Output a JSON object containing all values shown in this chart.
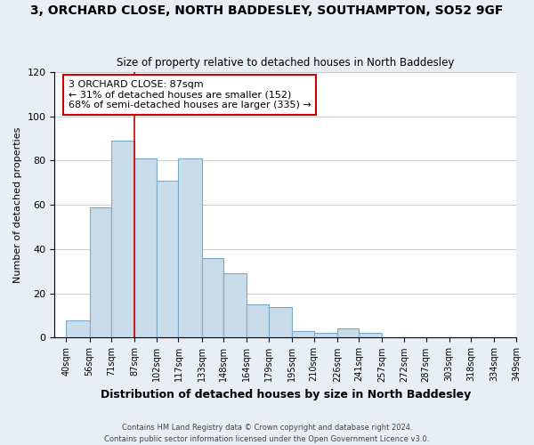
{
  "title": "3, ORCHARD CLOSE, NORTH BADDESLEY, SOUTHAMPTON, SO52 9GF",
  "subtitle": "Size of property relative to detached houses in North Baddesley",
  "xlabel": "Distribution of detached houses by size in North Baddesley",
  "ylabel": "Number of detached properties",
  "bar_edges": [
    40,
    56,
    71,
    87,
    102,
    117,
    133,
    148,
    164,
    179,
    195,
    210,
    226,
    241,
    257,
    272,
    287,
    303,
    318,
    334,
    349
  ],
  "bar_heights": [
    8,
    59,
    89,
    81,
    71,
    81,
    36,
    29,
    15,
    14,
    3,
    2,
    4,
    2,
    0,
    0,
    0,
    0,
    0,
    0
  ],
  "bar_color": "#c9dcea",
  "bar_edge_color": "#7aaac8",
  "property_line_x": 87,
  "property_line_color": "#cc0000",
  "annotation_title": "3 ORCHARD CLOSE: 87sqm",
  "annotation_line1": "← 31% of detached houses are smaller (152)",
  "annotation_line2": "68% of semi-detached houses are larger (335) →",
  "annotation_box_color": "#ffffff",
  "annotation_box_edge_color": "#cc0000",
  "ylim": [
    0,
    120
  ],
  "xlim": [
    32,
    349
  ],
  "tick_labels": [
    "40sqm",
    "56sqm",
    "71sqm",
    "87sqm",
    "102sqm",
    "117sqm",
    "133sqm",
    "148sqm",
    "164sqm",
    "179sqm",
    "195sqm",
    "210sqm",
    "226sqm",
    "241sqm",
    "257sqm",
    "272sqm",
    "287sqm",
    "303sqm",
    "318sqm",
    "334sqm",
    "349sqm"
  ],
  "tick_positions": [
    40,
    56,
    71,
    87,
    102,
    117,
    133,
    148,
    164,
    179,
    195,
    210,
    226,
    241,
    257,
    272,
    287,
    303,
    318,
    334,
    349
  ],
  "yticks": [
    0,
    20,
    40,
    60,
    80,
    100,
    120
  ],
  "footer_line1": "Contains HM Land Registry data © Crown copyright and database right 2024.",
  "footer_line2": "Contains public sector information licensed under the Open Government Licence v3.0.",
  "bg_color": "#e8eef4",
  "plot_bg_color": "#ffffff",
  "grid_color": "#cccccc"
}
